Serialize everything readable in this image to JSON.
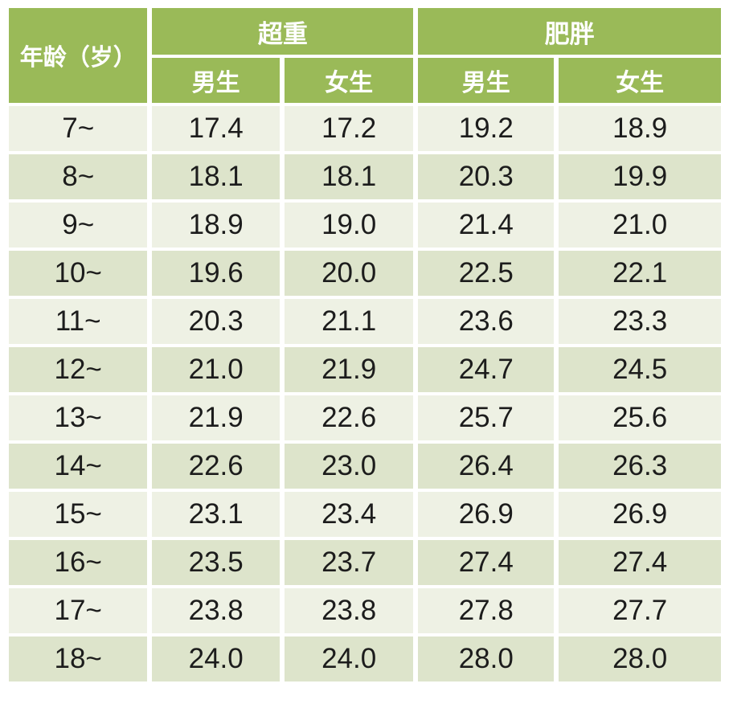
{
  "colors": {
    "header_green": "#9aba58",
    "header_text": "#ffffff",
    "row_light": "#eef1e4",
    "row_dark": "#dde4cb",
    "cell_text": "#1c1c1c",
    "background": "#ffffff"
  },
  "chart_data": {
    "type": "table",
    "corner_header": "年龄（岁）",
    "group_headers": [
      "超重",
      "肥胖"
    ],
    "sub_headers": [
      "男生",
      "女生",
      "男生",
      "女生"
    ],
    "rows": [
      {
        "age": "7~",
        "values": [
          "17.4",
          "17.2",
          "19.2",
          "18.9"
        ]
      },
      {
        "age": "8~",
        "values": [
          "18.1",
          "18.1",
          "20.3",
          "19.9"
        ]
      },
      {
        "age": "9~",
        "values": [
          "18.9",
          "19.0",
          "21.4",
          "21.0"
        ]
      },
      {
        "age": "10~",
        "values": [
          "19.6",
          "20.0",
          "22.5",
          "22.1"
        ]
      },
      {
        "age": "11~",
        "values": [
          "20.3",
          "21.1",
          "23.6",
          "23.3"
        ]
      },
      {
        "age": "12~",
        "values": [
          "21.0",
          "21.9",
          "24.7",
          "24.5"
        ]
      },
      {
        "age": "13~",
        "values": [
          "21.9",
          "22.6",
          "25.7",
          "25.6"
        ]
      },
      {
        "age": "14~",
        "values": [
          "22.6",
          "23.0",
          "26.4",
          "26.3"
        ]
      },
      {
        "age": "15~",
        "values": [
          "23.1",
          "23.4",
          "26.9",
          "26.9"
        ]
      },
      {
        "age": "16~",
        "values": [
          "23.5",
          "23.7",
          "27.4",
          "27.4"
        ]
      },
      {
        "age": "17~",
        "values": [
          "23.8",
          "23.8",
          "27.8",
          "27.7"
        ]
      },
      {
        "age": "18~",
        "values": [
          "24.0",
          "24.0",
          "28.0",
          "28.0"
        ]
      }
    ]
  }
}
